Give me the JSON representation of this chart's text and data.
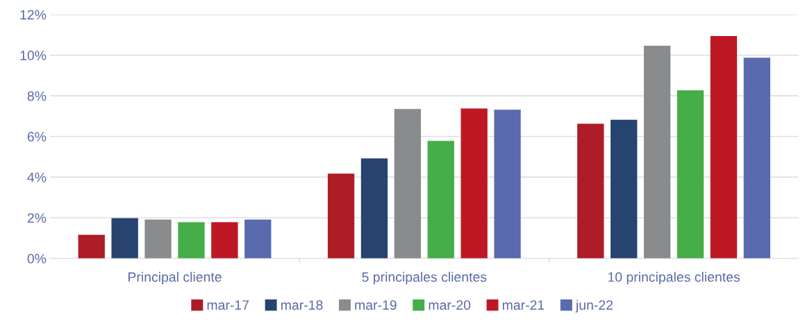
{
  "chart_data": {
    "type": "bar",
    "categories": [
      "Principal cliente",
      "5 principales clientes",
      "10 principales clientes"
    ],
    "series": [
      {
        "name": "mar-17",
        "color": "#ae1c27",
        "values": [
          1.16,
          4.17,
          6.63
        ]
      },
      {
        "name": "mar-18",
        "color": "#26446f",
        "values": [
          1.98,
          4.92,
          6.82
        ]
      },
      {
        "name": "mar-19",
        "color": "#8a8b8d",
        "values": [
          1.91,
          7.35,
          10.46
        ]
      },
      {
        "name": "mar-20",
        "color": "#45ae49",
        "values": [
          1.78,
          5.78,
          8.27
        ]
      },
      {
        "name": "mar-21",
        "color": "#be1825",
        "values": [
          1.78,
          7.38,
          10.94
        ]
      },
      {
        "name": "jun-22",
        "color": "#596bae",
        "values": [
          1.91,
          7.32,
          9.88
        ]
      }
    ],
    "ylim": [
      0,
      12
    ],
    "yticks": [
      {
        "value": 0,
        "label": "0%"
      },
      {
        "value": 2,
        "label": "2%"
      },
      {
        "value": 4,
        "label": "4%"
      },
      {
        "value": 6,
        "label": "6%"
      },
      {
        "value": 8,
        "label": "8%"
      },
      {
        "value": 10,
        "label": "10%"
      },
      {
        "value": 12,
        "label": "12%"
      }
    ],
    "grid": "y",
    "legend": "bottom"
  }
}
